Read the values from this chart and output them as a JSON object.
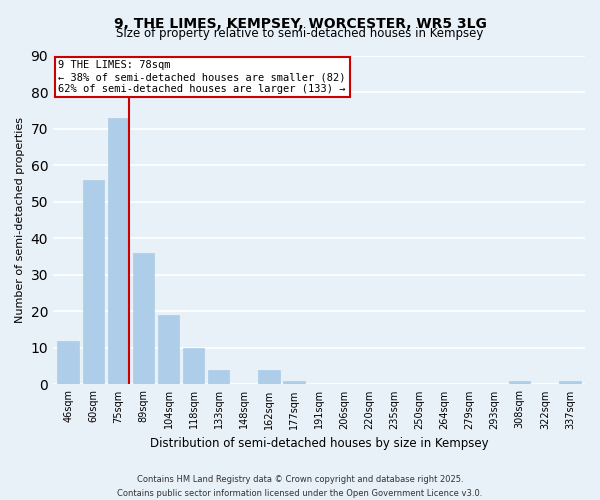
{
  "title": "9, THE LIMES, KEMPSEY, WORCESTER, WR5 3LG",
  "subtitle": "Size of property relative to semi-detached houses in Kempsey",
  "xlabel": "Distribution of semi-detached houses by size in Kempsey",
  "ylabel": "Number of semi-detached properties",
  "bar_labels": [
    "46sqm",
    "60sqm",
    "75sqm",
    "89sqm",
    "104sqm",
    "118sqm",
    "133sqm",
    "148sqm",
    "162sqm",
    "177sqm",
    "191sqm",
    "206sqm",
    "220sqm",
    "235sqm",
    "250sqm",
    "264sqm",
    "279sqm",
    "293sqm",
    "308sqm",
    "322sqm",
    "337sqm"
  ],
  "bar_values": [
    12,
    56,
    73,
    36,
    19,
    10,
    4,
    0,
    4,
    1,
    0,
    0,
    0,
    0,
    0,
    0,
    0,
    0,
    1,
    0,
    1
  ],
  "bar_color": "#aecde8",
  "bar_edge_color": "#aecde8",
  "bg_color": "#e8f0f8",
  "grid_color": "#ffffff",
  "vline_color": "#cc0000",
  "annotation_title": "9 THE LIMES: 78sqm",
  "annotation_line1": "← 38% of semi-detached houses are smaller (82)",
  "annotation_line2": "62% of semi-detached houses are larger (133) →",
  "annotation_box_color": "#ffffff",
  "annotation_box_edge": "#cc0000",
  "ylim": [
    0,
    90
  ],
  "yticks": [
    0,
    10,
    20,
    30,
    40,
    50,
    60,
    70,
    80,
    90
  ],
  "footnote1": "Contains HM Land Registry data © Crown copyright and database right 2025.",
  "footnote2": "Contains public sector information licensed under the Open Government Licence v3.0."
}
